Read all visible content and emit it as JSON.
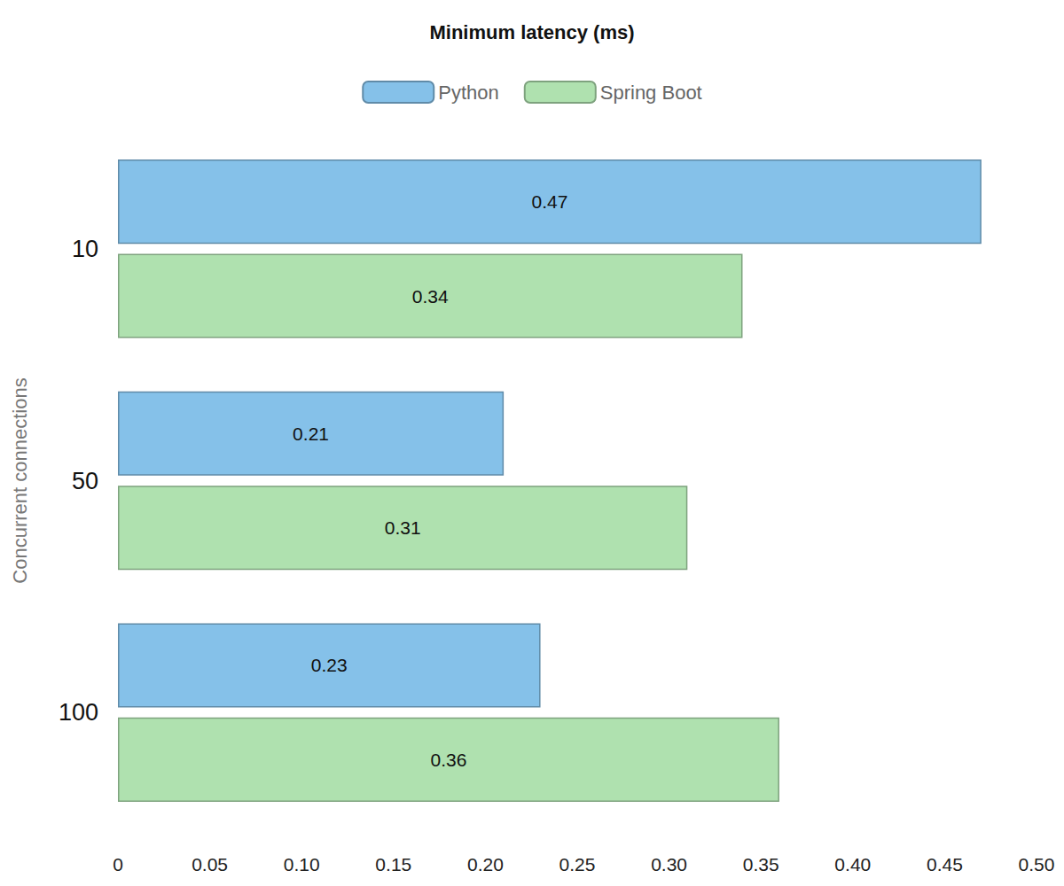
{
  "chart_data": {
    "type": "bar",
    "title": "Minimum latency (ms)",
    "orientation": "horizontal",
    "ylabel": "Concurrent connections",
    "categories": [
      "10",
      "50",
      "100"
    ],
    "series": [
      {
        "name": "Python",
        "color": "#85c1e9",
        "values": [
          0.47,
          0.21,
          0.23
        ]
      },
      {
        "name": "Spring Boot",
        "color": "#afe1af",
        "values": [
          0.34,
          0.31,
          0.36
        ]
      }
    ],
    "xlim": [
      0,
      0.5
    ],
    "xticks": [
      0,
      0.05,
      {
        "value": 0.1,
        "label": "0.10"
      },
      0.15,
      {
        "value": 0.2,
        "label": "0.20"
      },
      0.25,
      {
        "value": 0.3,
        "label": "0.30"
      },
      0.35,
      {
        "value": 0.4,
        "label": "0.40"
      },
      0.45,
      {
        "value": 0.5,
        "label": "0.50"
      }
    ],
    "grid": false,
    "legend": "top",
    "data_labels": true
  }
}
